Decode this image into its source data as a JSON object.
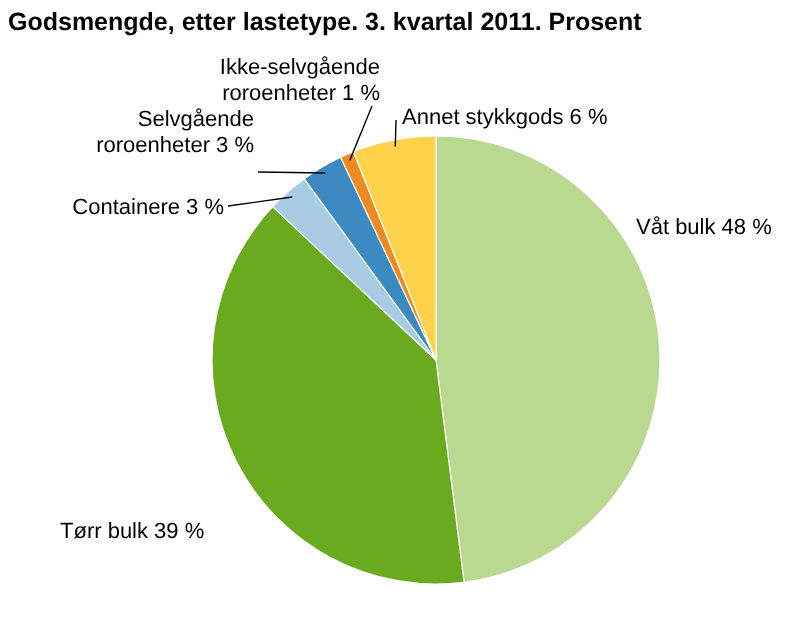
{
  "chart_data": {
    "type": "pie",
    "title": "Godsmengde, etter lastetype. 3. kvartal 2011. Prosent",
    "categories": [
      "Våt bulk",
      "Tørr bulk",
      "Containere",
      "Selvgående roroenheter",
      "Ikke-selvgående roroenheter",
      "Annet stykkgods"
    ],
    "values": [
      48,
      39,
      3,
      3,
      1,
      6
    ],
    "value_labels": [
      "48 %",
      "39 %",
      "3 %",
      "3 %",
      "1 %",
      "6 %"
    ],
    "colors": [
      "#b8d98f",
      "#6aaa1e",
      "#a6cbe3",
      "#3b8bc2",
      "#f08a1e",
      "#ffd24a"
    ]
  }
}
